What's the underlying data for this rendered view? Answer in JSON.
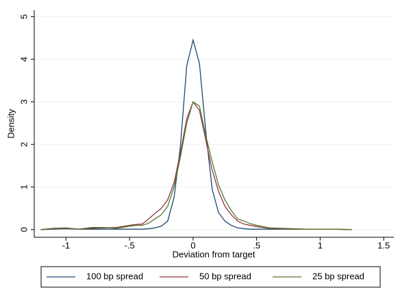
{
  "chart_data": {
    "type": "line",
    "x_label": "Deviation from target",
    "y_label": "Density",
    "x": [
      -1.2,
      -1.1,
      -1.0,
      -0.9,
      -0.8,
      -0.7,
      -0.6,
      -0.5,
      -0.45,
      -0.4,
      -0.35,
      -0.3,
      -0.25,
      -0.2,
      -0.15,
      -0.1,
      -0.05,
      0,
      0.05,
      0.1,
      0.15,
      0.2,
      0.25,
      0.3,
      0.35,
      0.4,
      0.45,
      0.5,
      0.6,
      0.7,
      0.8,
      0.9,
      1.0,
      1.1,
      1.25
    ],
    "series": [
      {
        "name": "100 bp spread",
        "color": "#1a476f",
        "values": [
          0,
          0.01,
          0.02,
          0.01,
          0.01,
          0.01,
          0.01,
          0.01,
          0.01,
          0.01,
          0.02,
          0.04,
          0.08,
          0.2,
          0.75,
          1.95,
          3.85,
          4.45,
          3.9,
          2.3,
          0.95,
          0.4,
          0.2,
          0.1,
          0.04,
          0.02,
          0.01,
          0.01,
          0.01,
          0.01,
          0.01,
          0.01,
          0.01,
          0.01,
          0
        ]
      },
      {
        "name": "50 bp spread",
        "color": "#90353b",
        "values": [
          0,
          0.02,
          0.03,
          0.01,
          0.03,
          0.04,
          0.05,
          0.1,
          0.12,
          0.13,
          0.25,
          0.38,
          0.5,
          0.7,
          1.1,
          1.8,
          2.6,
          3.0,
          2.8,
          2.1,
          1.4,
          0.9,
          0.55,
          0.35,
          0.2,
          0.13,
          0.1,
          0.07,
          0.03,
          0.02,
          0.01,
          0.01,
          0.01,
          0.01,
          0
        ]
      },
      {
        "name": "25 bp spread",
        "color": "#55752f",
        "values": [
          0,
          0.03,
          0.04,
          0.01,
          0.05,
          0.05,
          0.03,
          0.08,
          0.1,
          0.1,
          0.15,
          0.25,
          0.35,
          0.55,
          1.0,
          1.7,
          2.5,
          3.0,
          2.9,
          2.2,
          1.6,
          1.05,
          0.7,
          0.45,
          0.25,
          0.2,
          0.14,
          0.1,
          0.04,
          0.03,
          0.02,
          0.01,
          0.01,
          0.01,
          0
        ]
      }
    ],
    "xlim": [
      -1.25,
      1.58
    ],
    "ylim": [
      -0.18,
      5.15
    ],
    "xticks": [
      -1,
      {
        "value": -0.5,
        "label": "-.5"
      },
      0,
      {
        "value": 0.5,
        "label": ".5"
      },
      1,
      1.5
    ],
    "yticks": [
      0,
      1,
      2,
      3,
      4,
      5
    ],
    "grid": true,
    "legend": "bottom"
  }
}
